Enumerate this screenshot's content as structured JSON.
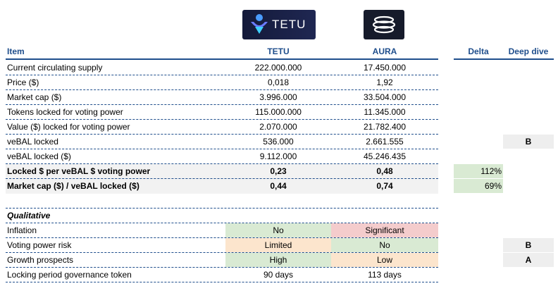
{
  "logos": [
    {
      "name": "TETU",
      "text": "TETU",
      "color": "#1f2752"
    },
    {
      "name": "AURA",
      "color": "#161b2b"
    }
  ],
  "headers": {
    "item": "Item",
    "tetu": "TETU",
    "aura": "AURA",
    "delta": "Delta",
    "deep_dive": "Deep dive"
  },
  "rows": [
    {
      "item": "Current circulating supply",
      "tetu": "222.000.000",
      "aura": "17.450.000"
    },
    {
      "item": "Price ($)",
      "tetu": "0,018",
      "aura": "1,92"
    },
    {
      "item": "Market cap ($)",
      "tetu": "3.996.000",
      "aura": "33.504.000"
    },
    {
      "item": "Tokens locked for voting power",
      "tetu": "115.000.000",
      "aura": "11.345.000"
    },
    {
      "item": "Value ($) locked for voting power",
      "tetu": "2.070.000",
      "aura": "21.782.400"
    },
    {
      "item": "veBAL locked",
      "tetu": "536.000",
      "aura": "2.661.555",
      "deep_dive": "B"
    },
    {
      "item": "veBAL locked ($)",
      "tetu": "9.112.000",
      "aura": "45.246.435"
    },
    {
      "item": "Locked $ per veBAL $ voting power",
      "tetu": "0,23",
      "aura": "0,48",
      "delta": "112%"
    },
    {
      "item": "Market cap ($) / veBAL locked ($)",
      "tetu": "0,44",
      "aura": "0,74",
      "delta": "69%"
    }
  ],
  "qualitative": {
    "title": "Qualitative",
    "rows": [
      {
        "item": "Inflation",
        "tetu": "No",
        "aura": "Significant",
        "tetu_color": "#d9ead3",
        "aura_color": "#f4cccc"
      },
      {
        "item": "Voting power risk",
        "tetu": "Limited",
        "aura": "No",
        "tetu_color": "#fce5cd",
        "aura_color": "#d9ead3",
        "deep_dive": "B"
      },
      {
        "item": "Growth prospects",
        "tetu": "High",
        "aura": "Low",
        "tetu_color": "#d9ead3",
        "aura_color": "#fce5cd",
        "deep_dive": "A"
      },
      {
        "item": "Locking period governance token",
        "tetu": "90 days",
        "aura": "113 days"
      }
    ]
  },
  "colors": {
    "accent": "#1f4e8c",
    "positive": "#d9ead3",
    "negative": "#f4cccc",
    "neutral": "#fce5cd"
  }
}
